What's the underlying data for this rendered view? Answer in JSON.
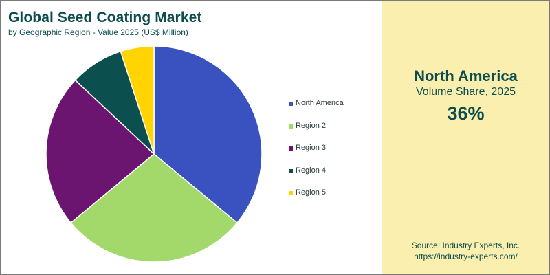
{
  "header": {
    "title": "Global Seed Coating Market",
    "subtitle": "by Geographic Region - Value 2025 (US$ Million)"
  },
  "chart_data": {
    "type": "pie",
    "categories": [
      "North America",
      "Region 2",
      "Region 3",
      "Region 4",
      "Region 5"
    ],
    "values": [
      36,
      28,
      23,
      8,
      5
    ],
    "colors": [
      "#3a52c0",
      "#a3d86a",
      "#6b1470",
      "#0b4f4f",
      "#ffd400"
    ],
    "start": "top",
    "direction": "clockwise",
    "legend_position": "right"
  },
  "panel": {
    "region": "North America",
    "metric": "Volume Share, 2025",
    "value": "36%",
    "background": "#faefaf"
  },
  "source": {
    "line1": "Source: Industry Experts, Inc.",
    "line2": "https://industry-experts.com/"
  }
}
